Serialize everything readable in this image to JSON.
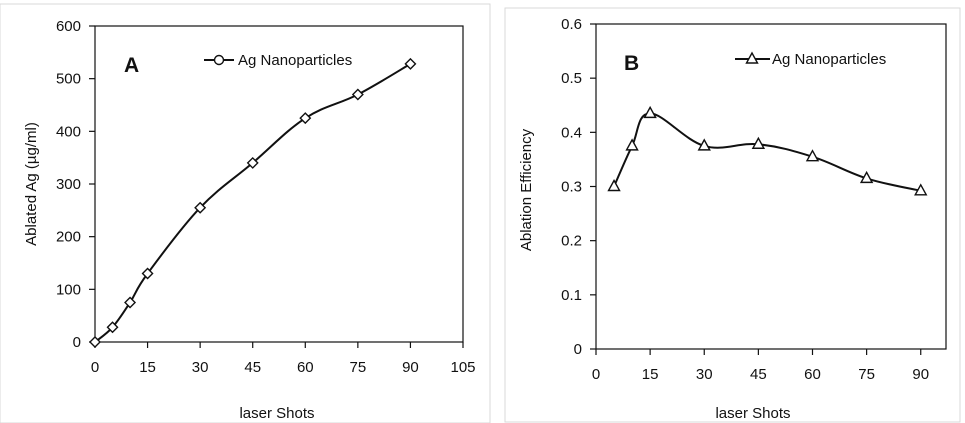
{
  "chart_data": [
    {
      "type": "line",
      "panel_label": "A",
      "xlabel": "laser Shots",
      "ylabel": "Ablated Ag (µg/ml)",
      "xlim": [
        0,
        105
      ],
      "ylim": [
        0,
        600
      ],
      "x_ticks": [
        0,
        15,
        30,
        45,
        60,
        75,
        90,
        105
      ],
      "y_ticks": [
        0,
        100,
        200,
        300,
        400,
        500,
        600
      ],
      "legend_position": "top-right",
      "grid": false,
      "series": [
        {
          "name": "Ag Nanoparticles",
          "marker": "diamond",
          "color": "#111111",
          "x": [
            0,
            5,
            10,
            15,
            30,
            45,
            60,
            75,
            90
          ],
          "y": [
            0,
            28,
            75,
            130,
            255,
            340,
            425,
            470,
            528
          ]
        }
      ]
    },
    {
      "type": "line",
      "panel_label": "B",
      "xlabel": "laser Shots",
      "ylabel": "Ablation Efficiency",
      "xlim": [
        0,
        97
      ],
      "ylim": [
        0,
        0.6
      ],
      "x_ticks": [
        0,
        15,
        30,
        45,
        60,
        75,
        90
      ],
      "y_ticks": [
        "0",
        "0.1",
        "0.2",
        "0.3",
        "0.4",
        "0.5",
        "0.6"
      ],
      "legend_position": "top-right",
      "grid": false,
      "series": [
        {
          "name": "Ag Nanoparticles",
          "marker": "triangle",
          "color": "#111111",
          "x": [
            5,
            10,
            15,
            30,
            45,
            60,
            75,
            90
          ],
          "y": [
            0.3,
            0.375,
            0.435,
            0.375,
            0.378,
            0.355,
            0.315,
            0.292
          ]
        }
      ]
    }
  ]
}
